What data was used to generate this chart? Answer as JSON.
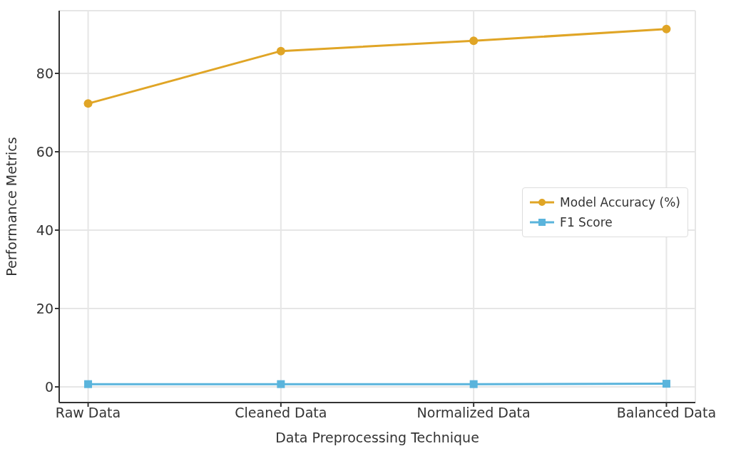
{
  "chart_data": {
    "type": "line",
    "xlabel": "Data Preprocessing Technique",
    "ylabel": "Performance Metrics",
    "categories": [
      "Raw Data",
      "Cleaned Data",
      "Normalized Data",
      "Balanced Data"
    ],
    "series": [
      {
        "name": "Model Accuracy (%)",
        "color": "#e0a526",
        "marker": "circle",
        "values": [
          72.3,
          85.7,
          88.3,
          91.3
        ]
      },
      {
        "name": "F1 Score",
        "color": "#5ab4dc",
        "marker": "square",
        "values": [
          0.7,
          0.7,
          0.7,
          0.8
        ]
      }
    ],
    "ylim": [
      -4,
      96
    ],
    "yticks": [
      0,
      20,
      40,
      60,
      80
    ],
    "grid": true,
    "legend": "right",
    "line_style": "solid"
  }
}
